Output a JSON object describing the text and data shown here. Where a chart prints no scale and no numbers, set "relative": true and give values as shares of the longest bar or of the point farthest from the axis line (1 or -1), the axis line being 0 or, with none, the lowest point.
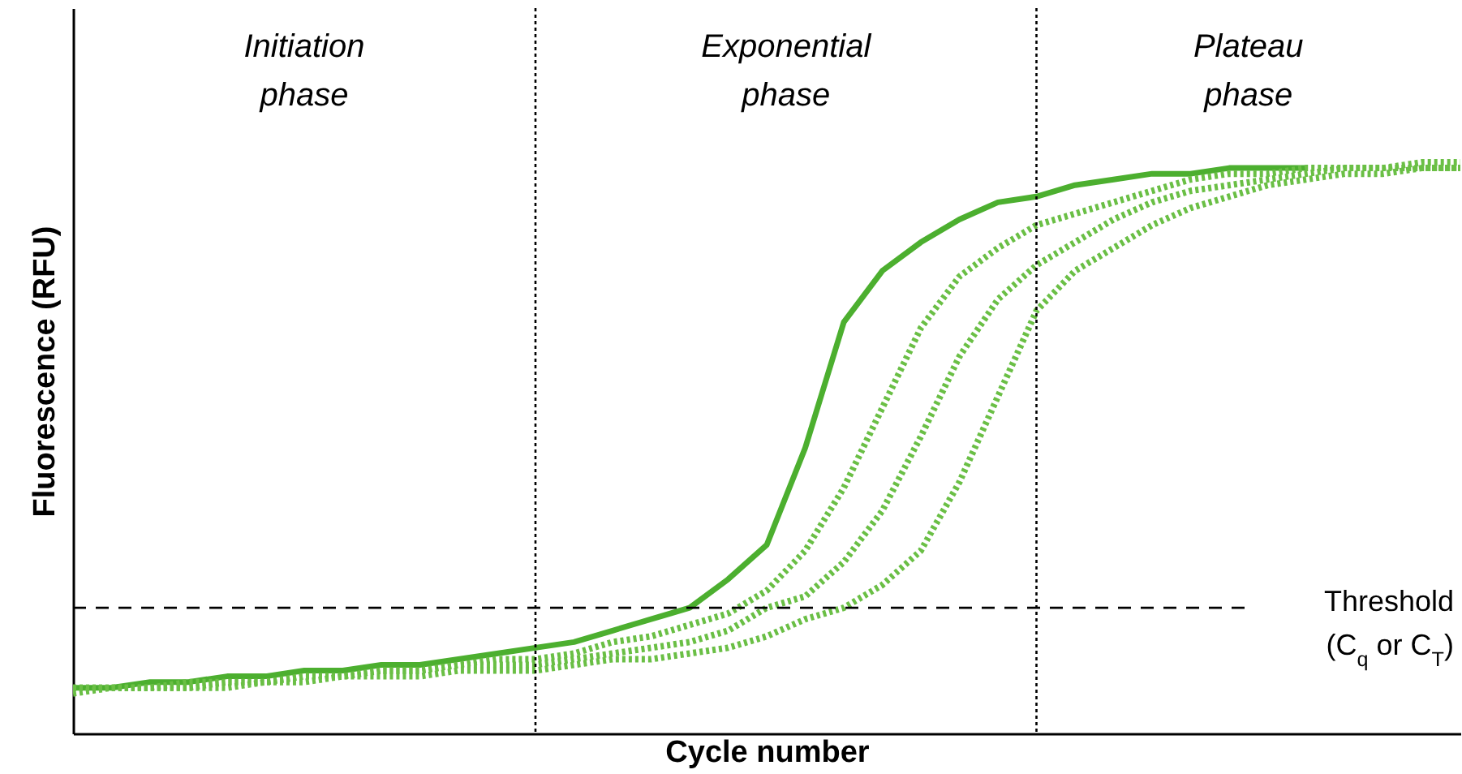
{
  "chart_data": {
    "type": "line",
    "relative": true,
    "xlabel": "Cycle number",
    "ylabel": "Fluorescence (RFU)",
    "marker": "none",
    "categories": [
      null,
      null,
      null,
      null,
      null,
      null,
      null,
      null,
      null,
      null,
      null,
      null,
      null,
      null,
      null,
      null,
      null,
      null,
      null,
      null,
      null,
      null,
      null,
      null,
      null,
      null,
      null,
      null,
      null,
      null,
      null,
      null,
      null,
      null,
      null,
      null,
      null
    ],
    "annotations": [
      "Initiation\nphase",
      "Exponential\nphase",
      "Plateau\nphase"
    ],
    "ref_lines": [
      {
        "axis": "y",
        "value": 0.22,
        "label": "Threshold\n(C$_{q}$ or C$_{T}$)",
        "line_style": "dashed",
        "color": "#000000"
      }
    ],
    "series": [
      {
        "color": "#4caf2f",
        "line_style": "solid",
        "values": [
          0.08,
          0.08,
          0.09,
          0.09,
          0.1,
          0.1,
          0.11,
          0.11,
          0.12,
          0.12,
          0.13,
          0.14,
          0.15,
          0.16,
          0.18,
          0.2,
          0.22,
          0.27,
          0.33,
          0.5,
          0.72,
          0.81,
          0.86,
          0.9,
          0.93,
          0.94,
          0.96,
          0.97,
          0.98,
          0.98,
          0.99,
          0.99,
          0.99,
          null,
          null,
          null,
          null
        ]
      },
      {
        "color": "#6abf45",
        "line_style": "dotted",
        "values": [
          0.08,
          0.08,
          0.08,
          0.09,
          0.09,
          0.09,
          0.1,
          0.1,
          0.11,
          0.11,
          0.12,
          0.13,
          0.13,
          0.14,
          0.16,
          0.17,
          0.19,
          0.21,
          0.25,
          0.32,
          0.43,
          0.57,
          0.71,
          0.8,
          0.85,
          0.89,
          0.91,
          0.93,
          0.95,
          0.97,
          0.98,
          0.98,
          0.99,
          0.99,
          0.99,
          1,
          1
        ]
      },
      {
        "color": "#6abf45",
        "line_style": "dotted",
        "values": [
          0.08,
          0.08,
          0.08,
          0.08,
          0.09,
          0.09,
          0.1,
          0.1,
          0.11,
          0.11,
          0.12,
          0.12,
          0.12,
          0.13,
          0.14,
          0.15,
          0.16,
          0.18,
          0.22,
          0.24,
          0.3,
          0.39,
          0.52,
          0.66,
          0.76,
          0.82,
          0.86,
          0.9,
          0.93,
          0.95,
          0.96,
          0.97,
          0.98,
          0.99,
          0.99,
          0.99,
          0.99
        ]
      },
      {
        "color": "#6abf45",
        "line_style": "dotted",
        "values": [
          0.07,
          0.08,
          0.08,
          0.08,
          0.08,
          0.09,
          0.09,
          0.1,
          0.1,
          0.1,
          0.11,
          0.11,
          0.11,
          0.12,
          0.13,
          0.13,
          0.14,
          0.15,
          0.17,
          0.2,
          0.22,
          0.26,
          0.32,
          0.44,
          0.59,
          0.74,
          0.81,
          0.85,
          0.89,
          0.92,
          0.94,
          0.96,
          0.97,
          0.98,
          0.98,
          0.99,
          0.99
        ]
      }
    ]
  }
}
